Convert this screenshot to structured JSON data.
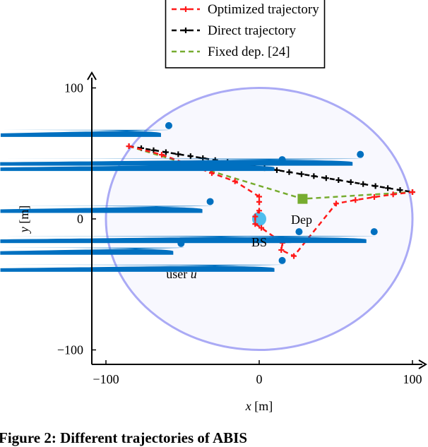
{
  "chart_data": {
    "type": "line",
    "xlabel": "x [m]",
    "ylabel": "y [m]",
    "xlim": [
      -109,
      107
    ],
    "ylim": [
      -111,
      109
    ],
    "xticks": [
      -100,
      0,
      100
    ],
    "yticks": [
      -100,
      0,
      100
    ],
    "xtick_labels": [
      "−100",
      "0",
      "100"
    ],
    "ytick_labels": [
      "−100",
      "0",
      "100"
    ],
    "grid": false,
    "legend_position": "top-center (outside)",
    "coverage_circle": {
      "center": [
        0,
        0
      ],
      "radius": 100,
      "color": "#aaaaf5",
      "fill": "#f8f8fe"
    },
    "series": [
      {
        "name": "Optimized trajectory",
        "color": "#ff1a1a",
        "marker": "+",
        "dash": true,
        "x": [
          -85,
          -63.6,
          -47.5,
          -30.9,
          -15.8,
          0,
          0,
          0,
          -2.6,
          -2.6,
          1.4,
          15.2,
          14.4,
          22.6,
          50.2,
          62.8,
          75.1,
          87.4,
          100
        ],
        "y": [
          55.5,
          49,
          42.2,
          35,
          28.7,
          17,
          13,
          6.3,
          1.8,
          -3.9,
          -6.8,
          -18.3,
          -23.7,
          -28.4,
          11.7,
          14.4,
          16.7,
          18.7,
          20.5
        ]
      },
      {
        "name": "Direct trajectory",
        "color": "#000000",
        "marker": "+",
        "dash": true,
        "x": [
          -85,
          100
        ],
        "y": [
          55.5,
          20.5
        ],
        "markers_count": 24
      },
      {
        "name": "Fixed dep. [24]",
        "color": "#77ac30",
        "marker": "none",
        "dash": true,
        "x": [
          -85,
          28.3,
          100
        ],
        "y": [
          55.5,
          15.3,
          20.5
        ]
      }
    ],
    "users": [
      [
        -59,
        68
      ],
      [
        15,
        42
      ],
      [
        66,
        46
      ],
      [
        -32,
        10
      ],
      [
        -51,
        -22
      ],
      [
        26,
        -13
      ],
      [
        75,
        -13
      ],
      [
        15,
        -35
      ]
    ],
    "user_color": "#0070c0",
    "bs": {
      "x": 0,
      "y": 0,
      "color": "#4dbeee",
      "label": "BS"
    },
    "dep": {
      "x": 28.3,
      "y": 15.3,
      "color": "#77ac30",
      "label": "Dep"
    },
    "annotations": [
      {
        "text": "user ",
        "math": "u",
        "x": -51,
        "y": -42
      }
    ]
  },
  "caption": "Figure 2: Different trajectories of ABIS"
}
